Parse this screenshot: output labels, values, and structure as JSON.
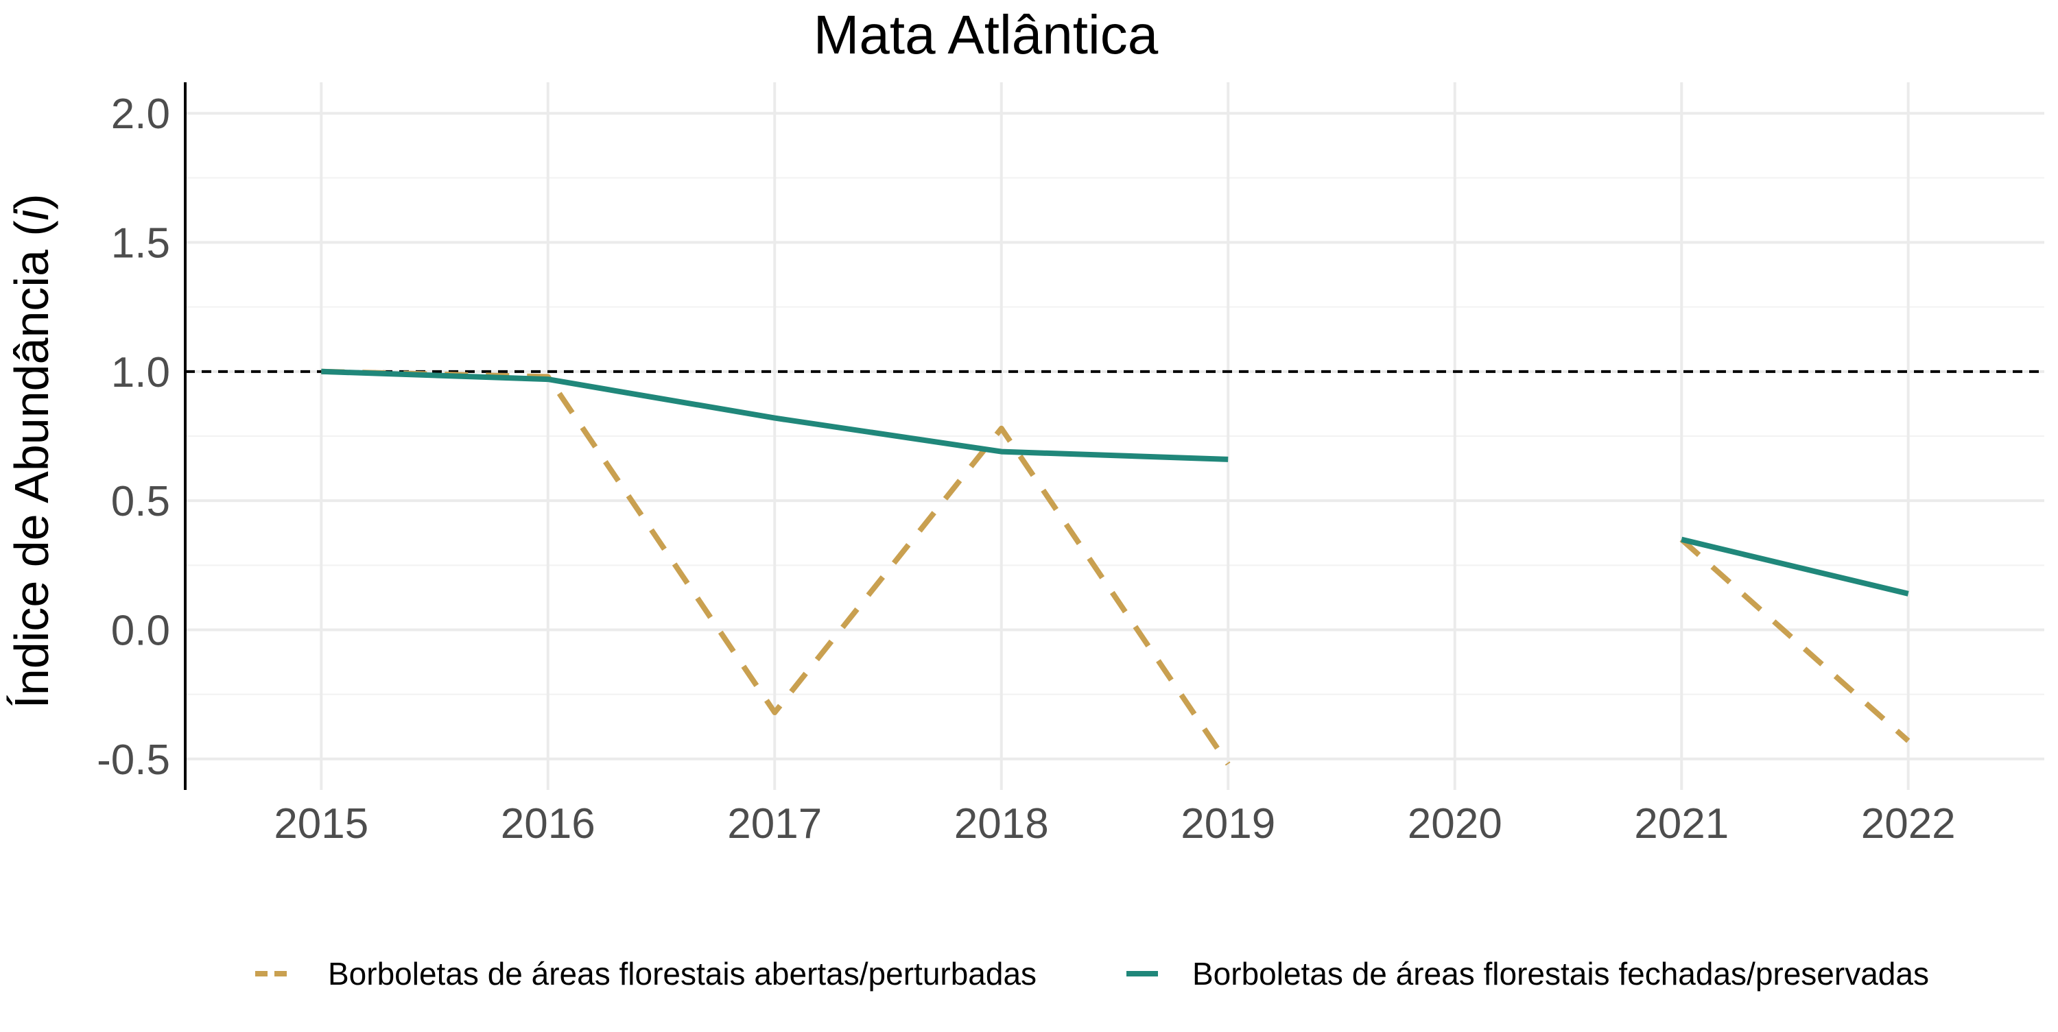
{
  "chart_data": {
    "type": "line",
    "title": "Mata Atlântica",
    "ylabel_prefix": "Índice de Abundância (",
    "ylabel_italic": "i",
    "ylabel_suffix": ")",
    "xlabel": "",
    "x": [
      2015,
      2016,
      2017,
      2018,
      2019,
      2020,
      2021,
      2022
    ],
    "x_tick_labels": [
      "2015",
      "2016",
      "2017",
      "2018",
      "2019",
      "2020",
      "2021",
      "2022"
    ],
    "xlim": [
      2014.4,
      2022.6
    ],
    "ylim": [
      -0.62,
      2.12
    ],
    "y_ticks": [
      -0.5,
      0.0,
      0.5,
      1.0,
      1.5,
      2.0
    ],
    "y_tick_labels": [
      "-0.5",
      "0.0",
      "0.5",
      "1.0",
      "1.5",
      "2.0"
    ],
    "reference_line": {
      "y": 1.0,
      "style": "dashed",
      "color": "#000000"
    },
    "grid": true,
    "legend_position": "bottom",
    "series": [
      {
        "name": "Borboletas de áreas florestais abertas/perturbadas",
        "color": "#C9A050",
        "line_style": "dashed",
        "values": [
          1.0,
          0.98,
          -0.32,
          0.78,
          -0.52,
          null,
          0.35,
          -0.43
        ]
      },
      {
        "name": "Borboletas de áreas florestais fechadas/preservadas",
        "color": "#20877A",
        "line_style": "solid",
        "values": [
          1.0,
          0.97,
          0.82,
          0.69,
          0.66,
          null,
          0.35,
          0.14
        ]
      }
    ]
  }
}
